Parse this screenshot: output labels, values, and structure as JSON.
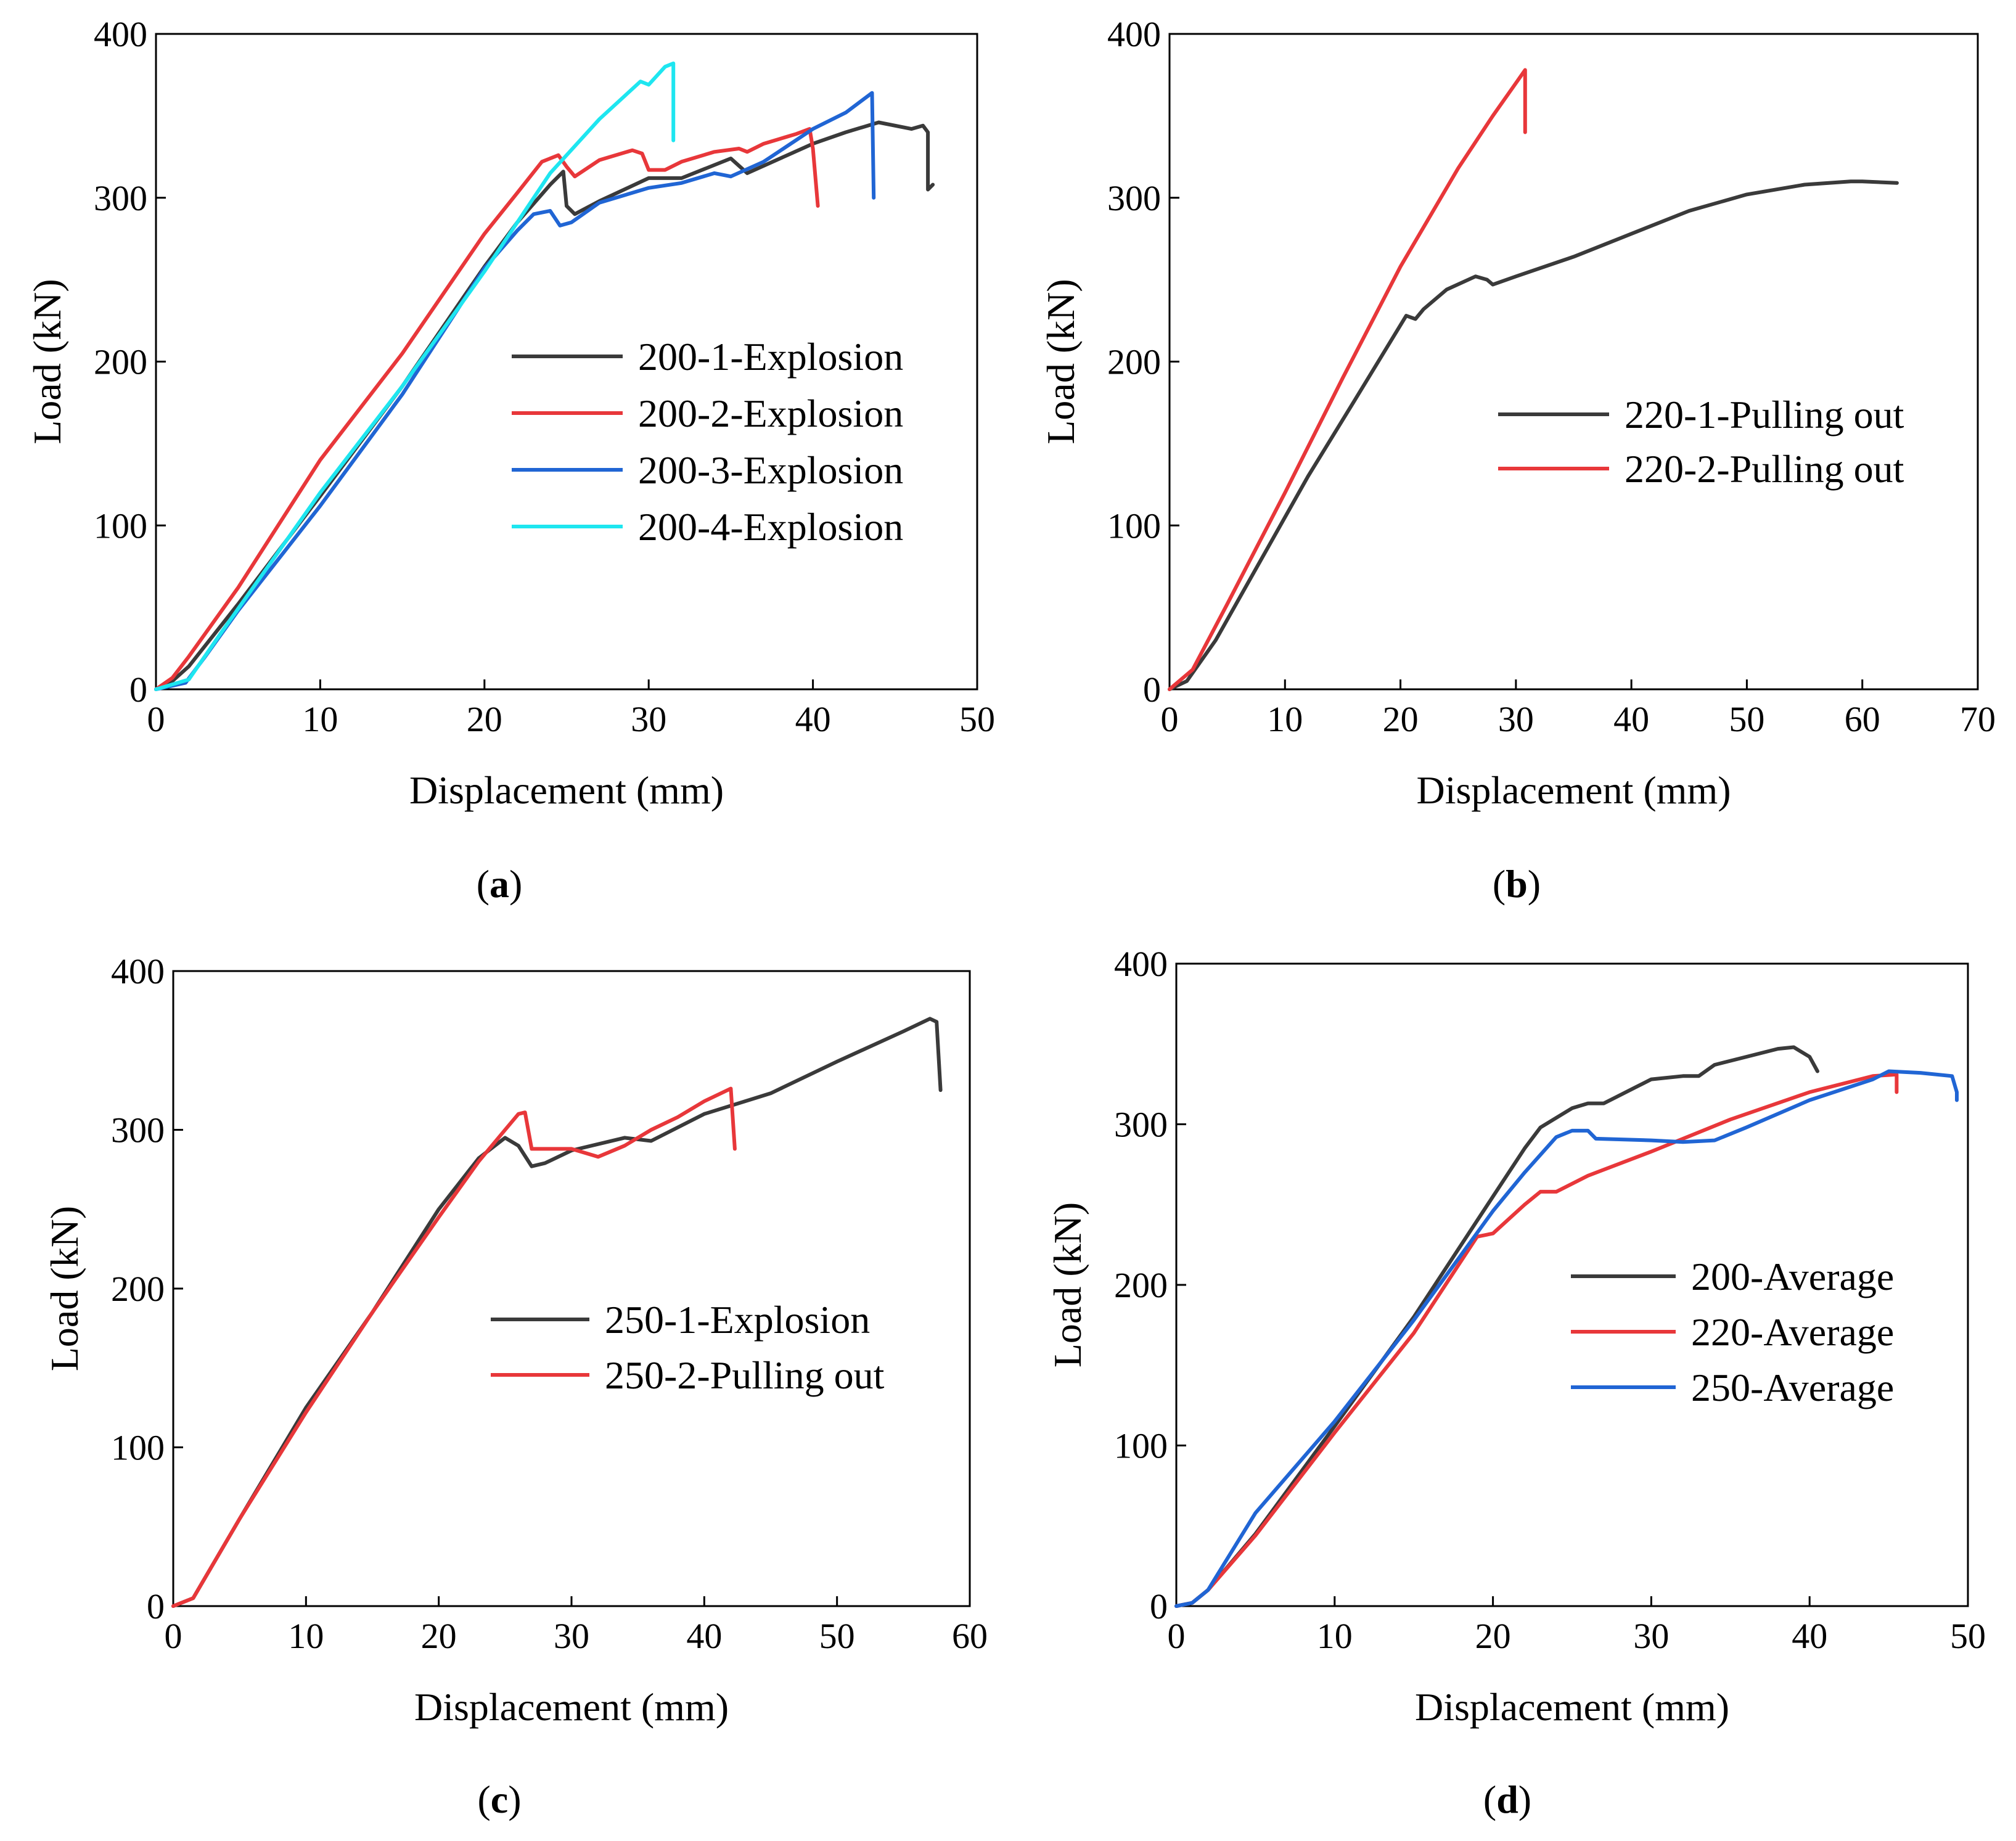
{
  "figure": {
    "panels": [
      {
        "id": "a",
        "caption": "a"
      },
      {
        "id": "b",
        "caption": "b"
      },
      {
        "id": "c",
        "caption": "c"
      },
      {
        "id": "d",
        "caption": "d"
      }
    ]
  },
  "chart_data": [
    {
      "id": "a",
      "type": "line",
      "title": "",
      "xlabel": "Displacement (mm)",
      "ylabel": "Load (kN)",
      "xlim": [
        0,
        50
      ],
      "ylim": [
        0,
        400
      ],
      "xticks": [
        0,
        10,
        20,
        30,
        40,
        50
      ],
      "yticks": [
        0,
        100,
        200,
        300,
        400
      ],
      "legend_position": "center-right",
      "series": [
        {
          "name": "200-1-Explosion",
          "color": "#3a3a3a",
          "points": [
            [
              0,
              0
            ],
            [
              1,
              5
            ],
            [
              2,
              14
            ],
            [
              5,
              52
            ],
            [
              10,
              118
            ],
            [
              15,
              185
            ],
            [
              20,
              258
            ],
            [
              22,
              285
            ],
            [
              24,
              308
            ],
            [
              24.8,
              316
            ],
            [
              25,
              295
            ],
            [
              25.5,
              290
            ],
            [
              27,
              298
            ],
            [
              30,
              312
            ],
            [
              32,
              312
            ],
            [
              35,
              324
            ],
            [
              36,
              315
            ],
            [
              40,
              333
            ],
            [
              42,
              340
            ],
            [
              44,
              346
            ],
            [
              46,
              342
            ],
            [
              46.7,
              344
            ],
            [
              47,
              340
            ],
            [
              47,
              305
            ],
            [
              47.3,
              308
            ]
          ]
        },
        {
          "name": "200-2-Explosion",
          "color": "#e8373a",
          "points": [
            [
              0,
              0
            ],
            [
              1,
              7
            ],
            [
              2,
              20
            ],
            [
              5,
              62
            ],
            [
              10,
              140
            ],
            [
              15,
              205
            ],
            [
              20,
              278
            ],
            [
              22,
              303
            ],
            [
              23.5,
              322
            ],
            [
              24.5,
              326
            ],
            [
              25,
              319
            ],
            [
              25.5,
              313
            ],
            [
              27,
              323
            ],
            [
              29,
              329
            ],
            [
              29.6,
              327
            ],
            [
              30,
              317
            ],
            [
              31,
              317
            ],
            [
              32,
              322
            ],
            [
              34,
              328
            ],
            [
              35.5,
              330
            ],
            [
              36,
              328
            ],
            [
              37,
              333
            ],
            [
              38,
              336
            ],
            [
              39,
              339
            ],
            [
              39.8,
              342
            ],
            [
              40,
              330
            ],
            [
              40.3,
              295
            ]
          ]
        },
        {
          "name": "200-3-Explosion",
          "color": "#2065d4",
          "points": [
            [
              0,
              0
            ],
            [
              1.8,
              4
            ],
            [
              3,
              20
            ],
            [
              5,
              48
            ],
            [
              10,
              112
            ],
            [
              15,
              180
            ],
            [
              20,
              257
            ],
            [
              22,
              280
            ],
            [
              23,
              290
            ],
            [
              24,
              292
            ],
            [
              24.6,
              283
            ],
            [
              25.3,
              285
            ],
            [
              27,
              297
            ],
            [
              30,
              306
            ],
            [
              32,
              309
            ],
            [
              34,
              315
            ],
            [
              35,
              313
            ],
            [
              37,
              322
            ],
            [
              40,
              342
            ],
            [
              42,
              352
            ],
            [
              43.6,
              364
            ],
            [
              43.7,
              300
            ]
          ]
        },
        {
          "name": "200-4-Explosion",
          "color": "#1ee6f0",
          "points": [
            [
              0,
              0
            ],
            [
              2,
              6
            ],
            [
              4,
              35
            ],
            [
              10,
              120
            ],
            [
              15,
              185
            ],
            [
              20,
              255
            ],
            [
              24,
              315
            ],
            [
              27,
              348
            ],
            [
              29.5,
              371
            ],
            [
              30,
              369
            ],
            [
              31,
              380
            ],
            [
              31.5,
              382
            ],
            [
              31.5,
              335
            ]
          ]
        }
      ]
    },
    {
      "id": "b",
      "type": "line",
      "title": "",
      "xlabel": "Displacement (mm)",
      "ylabel": "Load (kN)",
      "xlim": [
        0,
        70
      ],
      "ylim": [
        0,
        400
      ],
      "xticks": [
        0,
        10,
        20,
        30,
        40,
        50,
        60,
        70
      ],
      "yticks": [
        0,
        100,
        200,
        300,
        400
      ],
      "legend_position": "center-right",
      "series": [
        {
          "name": "220-1-Pulling out",
          "color": "#3a3a3a",
          "points": [
            [
              0,
              0
            ],
            [
              1.5,
              5
            ],
            [
              4,
              30
            ],
            [
              8,
              80
            ],
            [
              12,
              130
            ],
            [
              16,
              176
            ],
            [
              20.5,
              228
            ],
            [
              21.3,
              226
            ],
            [
              22,
              232
            ],
            [
              24,
              244
            ],
            [
              26.5,
              252
            ],
            [
              27.5,
              250
            ],
            [
              28,
              247
            ],
            [
              30,
              252
            ],
            [
              35,
              264
            ],
            [
              40,
              278
            ],
            [
              45,
              292
            ],
            [
              50,
              302
            ],
            [
              55,
              308
            ],
            [
              59,
              310
            ],
            [
              60,
              310
            ],
            [
              63,
              309
            ]
          ]
        },
        {
          "name": "220-2-Pulling out",
          "color": "#e8373a",
          "points": [
            [
              0,
              0
            ],
            [
              2,
              12
            ],
            [
              5,
              52
            ],
            [
              10,
              120
            ],
            [
              15,
              190
            ],
            [
              20,
              258
            ],
            [
              25,
              318
            ],
            [
              28,
              350
            ],
            [
              30,
              370
            ],
            [
              30.8,
              378
            ],
            [
              30.8,
              340
            ]
          ]
        }
      ]
    },
    {
      "id": "c",
      "type": "line",
      "title": "",
      "xlabel": "Displacement (mm)",
      "ylabel": "Load (kN)",
      "xlim": [
        0,
        60
      ],
      "ylim": [
        0,
        400
      ],
      "xticks": [
        0,
        10,
        20,
        30,
        40,
        50,
        60
      ],
      "yticks": [
        0,
        100,
        200,
        300,
        400
      ],
      "legend_position": "center-right",
      "series": [
        {
          "name": "250-1-Explosion",
          "color": "#3a3a3a",
          "points": [
            [
              0,
              0
            ],
            [
              1.5,
              5
            ],
            [
              5,
              55
            ],
            [
              10,
              125
            ],
            [
              15,
              185
            ],
            [
              20,
              250
            ],
            [
              23,
              282
            ],
            [
              25,
              295
            ],
            [
              26,
              290
            ],
            [
              27,
              277
            ],
            [
              28,
              279
            ],
            [
              30,
              287
            ],
            [
              34,
              295
            ],
            [
              36,
              293
            ],
            [
              40,
              310
            ],
            [
              45,
              323
            ],
            [
              50,
              343
            ],
            [
              55,
              362
            ],
            [
              57,
              370
            ],
            [
              57.5,
              368
            ],
            [
              57.8,
              325
            ]
          ]
        },
        {
          "name": "250-2-Pulling out",
          "color": "#e8373a",
          "points": [
            [
              0,
              0
            ],
            [
              1.5,
              5
            ],
            [
              5,
              55
            ],
            [
              10,
              122
            ],
            [
              15,
              185
            ],
            [
              20,
              245
            ],
            [
              23,
              280
            ],
            [
              25,
              300
            ],
            [
              26,
              310
            ],
            [
              26.5,
              311
            ],
            [
              27,
              288
            ],
            [
              30,
              288
            ],
            [
              32,
              283
            ],
            [
              34,
              290
            ],
            [
              36,
              300
            ],
            [
              38,
              308
            ],
            [
              40,
              318
            ],
            [
              42,
              326
            ],
            [
              42.3,
              288
            ]
          ]
        }
      ]
    },
    {
      "id": "d",
      "type": "line",
      "title": "",
      "xlabel": "Displacement (mm)",
      "ylabel": "Load (kN)",
      "xlim": [
        0,
        50
      ],
      "ylim": [
        0,
        400
      ],
      "xticks": [
        0,
        10,
        20,
        30,
        40,
        50
      ],
      "yticks": [
        0,
        100,
        200,
        300,
        400
      ],
      "legend_position": "center-right",
      "series": [
        {
          "name": "200-Average",
          "color": "#3a3a3a",
          "points": [
            [
              0,
              0
            ],
            [
              1,
              2
            ],
            [
              2,
              10
            ],
            [
              5,
              45
            ],
            [
              10,
              112
            ],
            [
              15,
              180
            ],
            [
              20,
              255
            ],
            [
              22,
              285
            ],
            [
              23,
              298
            ],
            [
              25,
              310
            ],
            [
              26,
              313
            ],
            [
              27,
              313
            ],
            [
              29,
              323
            ],
            [
              30,
              328
            ],
            [
              32,
              330
            ],
            [
              33,
              330
            ],
            [
              34,
              337
            ],
            [
              36,
              342
            ],
            [
              38,
              347
            ],
            [
              39,
              348
            ],
            [
              40,
              342
            ],
            [
              40.5,
              333
            ]
          ]
        },
        {
          "name": "220-Average",
          "color": "#e8373a",
          "points": [
            [
              0,
              0
            ],
            [
              1,
              2
            ],
            [
              2,
              10
            ],
            [
              5,
              44
            ],
            [
              10,
              108
            ],
            [
              15,
              170
            ],
            [
              19,
              230
            ],
            [
              20,
              232
            ],
            [
              22,
              250
            ],
            [
              23,
              258
            ],
            [
              24,
              258
            ],
            [
              26,
              268
            ],
            [
              30,
              283
            ],
            [
              35,
              303
            ],
            [
              40,
              320
            ],
            [
              44,
              330
            ],
            [
              45.5,
              331
            ],
            [
              45.5,
              320
            ]
          ]
        },
        {
          "name": "250-Average",
          "color": "#2065d4",
          "points": [
            [
              0,
              0
            ],
            [
              1,
              2
            ],
            [
              2,
              10
            ],
            [
              5,
              58
            ],
            [
              10,
              115
            ],
            [
              15,
              178
            ],
            [
              20,
              246
            ],
            [
              22,
              270
            ],
            [
              24,
              292
            ],
            [
              25,
              296
            ],
            [
              26,
              296
            ],
            [
              26.5,
              291
            ],
            [
              30,
              290
            ],
            [
              32,
              289
            ],
            [
              34,
              290
            ],
            [
              36,
              298
            ],
            [
              40,
              315
            ],
            [
              44,
              328
            ],
            [
              45,
              333
            ],
            [
              47,
              332
            ],
            [
              49,
              330
            ],
            [
              49.3,
              320
            ],
            [
              49.3,
              315
            ]
          ]
        }
      ]
    }
  ]
}
